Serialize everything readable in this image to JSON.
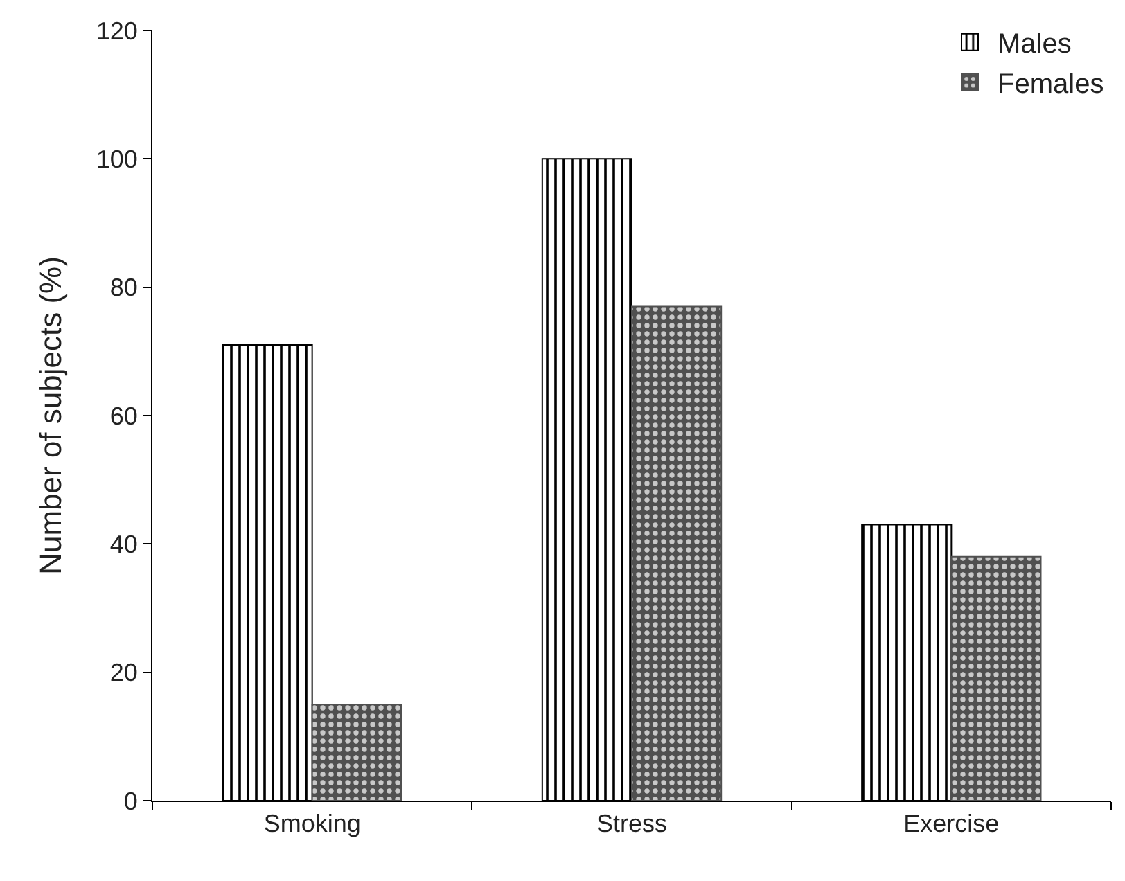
{
  "chart_data": {
    "type": "bar",
    "ylabel": "Number of subjects (%)",
    "categories": [
      "Smoking",
      "Stress",
      "Exercise"
    ],
    "series": [
      {
        "name": "Males",
        "color": "#000000",
        "values": [
          71,
          100,
          43
        ]
      },
      {
        "name": "Females",
        "color": "#505050",
        "values": [
          15,
          77,
          38
        ]
      }
    ],
    "ylim": [
      0,
      120
    ],
    "yticks": [
      0,
      20,
      40,
      60,
      80,
      100,
      120
    ],
    "legend": "top right"
  }
}
